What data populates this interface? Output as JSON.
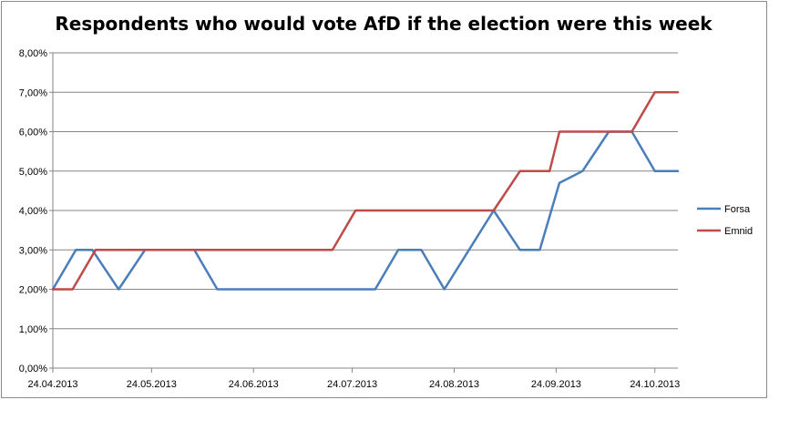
{
  "chart_data": {
    "type": "line",
    "title": "Respondents who would vote AfD if the election were this week",
    "xlabel": "",
    "ylabel": "",
    "ylim": [
      0,
      0.08
    ],
    "y_ticks": [
      "0,00%",
      "1,00%",
      "2,00%",
      "3,00%",
      "4,00%",
      "5,00%",
      "6,00%",
      "7,00%",
      "8,00%"
    ],
    "x_ticks": [
      "24.04.2013",
      "24.05.2013",
      "24.06.2013",
      "24.07.2013",
      "24.08.2013",
      "24.09.2013",
      "24.10.2013"
    ],
    "x_range": [
      "2013-04-24",
      "2013-10-31"
    ],
    "grid": true,
    "legend_position": "right",
    "series": [
      {
        "name": "Forsa",
        "color": "#4a7ebb",
        "points": [
          [
            "2013-04-24",
            0.02
          ],
          [
            "2013-05-01",
            0.03
          ],
          [
            "2013-05-06",
            0.03
          ],
          [
            "2013-05-14",
            0.02
          ],
          [
            "2013-05-22",
            0.03
          ],
          [
            "2013-06-06",
            0.03
          ],
          [
            "2013-06-13",
            0.02
          ],
          [
            "2013-07-31",
            0.02
          ],
          [
            "2013-08-07",
            0.03
          ],
          [
            "2013-08-14",
            0.03
          ],
          [
            "2013-08-21",
            0.02
          ],
          [
            "2013-09-05",
            0.04
          ],
          [
            "2013-09-13",
            0.03
          ],
          [
            "2013-09-19",
            0.03
          ],
          [
            "2013-09-25",
            0.047
          ],
          [
            "2013-10-02",
            0.05
          ],
          [
            "2013-10-10",
            0.06
          ],
          [
            "2013-10-17",
            0.06
          ],
          [
            "2013-10-24",
            0.05
          ],
          [
            "2013-10-31",
            0.05
          ]
        ]
      },
      {
        "name": "Emnid",
        "color": "#be4b48",
        "points": [
          [
            "2013-04-24",
            0.02
          ],
          [
            "2013-04-30",
            0.02
          ],
          [
            "2013-05-07",
            0.03
          ],
          [
            "2013-07-18",
            0.03
          ],
          [
            "2013-07-25",
            0.04
          ],
          [
            "2013-09-05",
            0.04
          ],
          [
            "2013-09-13",
            0.05
          ],
          [
            "2013-09-22",
            0.05
          ],
          [
            "2013-09-25",
            0.06
          ],
          [
            "2013-10-17",
            0.06
          ],
          [
            "2013-10-24",
            0.07
          ],
          [
            "2013-10-31",
            0.07
          ]
        ]
      }
    ]
  }
}
